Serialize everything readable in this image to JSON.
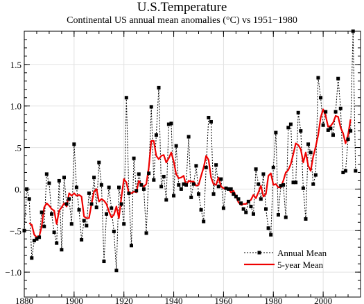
{
  "chart_data": {
    "type": "line",
    "title": "U.S.Temperature",
    "subtitle": "Continental US annual mean anomalies (°C) vs 1951−1980",
    "xlabel": "",
    "ylabel": "",
    "xlim": [
      1880,
      2015
    ],
    "ylim": [
      -1.3,
      1.9
    ],
    "grid": true,
    "legend_position": "bottom-right",
    "x_ticks": [
      1880,
      1900,
      1920,
      1940,
      1960,
      1980,
      2000
    ],
    "x_tick_labels": [
      "1880",
      "1900",
      "1920",
      "1940",
      "1960",
      "1980",
      "2000"
    ],
    "y_ticks": [
      -1.0,
      -0.5,
      0.0,
      0.5,
      1.0,
      1.5
    ],
    "y_tick_labels": [
      "−1.0",
      "−.5",
      "0.",
      ".5",
      "1.0",
      "1.5"
    ],
    "series": [
      {
        "name": "Annual Mean",
        "color": "#000000",
        "style": "dotted-with-square-markers",
        "x": [
          1880,
          1881,
          1882,
          1883,
          1884,
          1885,
          1886,
          1887,
          1888,
          1889,
          1890,
          1891,
          1892,
          1893,
          1894,
          1895,
          1896,
          1897,
          1898,
          1899,
          1900,
          1901,
          1902,
          1903,
          1904,
          1905,
          1906,
          1907,
          1908,
          1909,
          1910,
          1911,
          1912,
          1913,
          1914,
          1915,
          1916,
          1917,
          1918,
          1919,
          1920,
          1921,
          1922,
          1923,
          1924,
          1925,
          1926,
          1927,
          1928,
          1929,
          1930,
          1931,
          1932,
          1933,
          1934,
          1935,
          1936,
          1937,
          1938,
          1939,
          1940,
          1941,
          1942,
          1943,
          1944,
          1945,
          1946,
          1947,
          1948,
          1949,
          1950,
          1951,
          1952,
          1953,
          1954,
          1955,
          1956,
          1957,
          1958,
          1959,
          1960,
          1961,
          1962,
          1963,
          1964,
          1965,
          1966,
          1967,
          1968,
          1969,
          1970,
          1971,
          1972,
          1973,
          1974,
          1975,
          1976,
          1977,
          1978,
          1979,
          1980,
          1981,
          1982,
          1983,
          1984,
          1985,
          1986,
          1987,
          1988,
          1989,
          1990,
          1991,
          1992,
          1993,
          1994,
          1995,
          1996,
          1997,
          1998,
          1999,
          2000,
          2001,
          2002,
          2003,
          2004,
          2005,
          2006,
          2007,
          2008,
          2009,
          2010,
          2011,
          2012,
          2013
        ],
        "values": [
          -0.5,
          0.0,
          -0.12,
          -0.83,
          -0.62,
          -0.6,
          -0.58,
          -0.28,
          -0.45,
          0.18,
          0.07,
          -0.3,
          -0.52,
          -0.65,
          0.1,
          -0.73,
          0.14,
          -0.18,
          -0.12,
          -0.42,
          0.54,
          0.02,
          -0.25,
          -0.61,
          -0.38,
          -0.44,
          -0.05,
          -0.18,
          0.14,
          -0.22,
          0.32,
          0.05,
          -0.87,
          -0.3,
          0.02,
          -0.23,
          -0.51,
          -0.98,
          0.02,
          -0.18,
          -0.42,
          1.1,
          -0.05,
          -0.68,
          0.37,
          -0.02,
          0.18,
          0.05,
          0.0,
          -0.53,
          0.19,
          0.99,
          0.11,
          0.65,
          1.22,
          0.03,
          0.15,
          -0.13,
          0.78,
          0.79,
          -0.08,
          0.52,
          0.05,
          0.0,
          0.06,
          0.05,
          0.63,
          -0.1,
          0.06,
          0.28,
          -0.06,
          -0.25,
          -0.39,
          0.26,
          0.86,
          0.81,
          -0.06,
          0.29,
          0.03,
          0.12,
          -0.23,
          0.01,
          0.0,
          0.0,
          -0.06,
          -0.09,
          -0.12,
          -0.17,
          -0.24,
          -0.28,
          -0.15,
          -0.21,
          -0.3,
          0.24,
          0.06,
          -0.12,
          0.18,
          -0.24,
          -0.47,
          -0.55,
          0.26,
          0.68,
          -0.31,
          0.04,
          0.05,
          -0.34,
          0.74,
          0.78,
          0.08,
          0.08,
          0.92,
          0.7,
          0.01,
          -0.36,
          0.54,
          0.44,
          0.06,
          0.17,
          1.34,
          1.1,
          0.77,
          0.93,
          0.71,
          0.73,
          0.65,
          0.93,
          1.33,
          0.97,
          0.2,
          0.22,
          0.6,
          0.7,
          1.9,
          0.22
        ]
      },
      {
        "name": "5-year Mean",
        "color": "#ee0000",
        "style": "solid",
        "x": [
          1882,
          1883,
          1884,
          1885,
          1886,
          1887,
          1888,
          1889,
          1890,
          1891,
          1892,
          1893,
          1894,
          1895,
          1896,
          1897,
          1898,
          1899,
          1900,
          1901,
          1902,
          1903,
          1904,
          1905,
          1906,
          1907,
          1908,
          1909,
          1910,
          1911,
          1912,
          1913,
          1914,
          1915,
          1916,
          1917,
          1918,
          1919,
          1920,
          1921,
          1922,
          1923,
          1924,
          1925,
          1926,
          1927,
          1928,
          1929,
          1930,
          1931,
          1932,
          1933,
          1934,
          1935,
          1936,
          1937,
          1938,
          1939,
          1940,
          1941,
          1942,
          1943,
          1944,
          1945,
          1946,
          1947,
          1948,
          1949,
          1950,
          1951,
          1952,
          1953,
          1954,
          1955,
          1956,
          1957,
          1958,
          1959,
          1960,
          1961,
          1962,
          1963,
          1964,
          1965,
          1966,
          1967,
          1968,
          1969,
          1970,
          1971,
          1972,
          1973,
          1974,
          1975,
          1976,
          1977,
          1978,
          1979,
          1980,
          1981,
          1982,
          1983,
          1984,
          1985,
          1986,
          1987,
          1988,
          1989,
          1990,
          1991,
          1992,
          1993,
          1994,
          1995,
          1996,
          1997,
          1998,
          1999,
          2000,
          2001,
          2002,
          2003,
          2004,
          2005,
          2006,
          2007,
          2008,
          2009,
          2010,
          2011
        ],
        "values": [
          -0.41,
          -0.43,
          -0.55,
          -0.58,
          -0.57,
          -0.45,
          -0.22,
          -0.17,
          -0.2,
          -0.24,
          -0.26,
          -0.42,
          -0.26,
          -0.22,
          -0.17,
          -0.21,
          -0.05,
          -0.08,
          -0.05,
          -0.08,
          -0.07,
          -0.09,
          -0.33,
          -0.35,
          -0.35,
          -0.18,
          -0.03,
          0.0,
          -0.15,
          -0.12,
          -0.14,
          -0.18,
          -0.27,
          -0.34,
          -0.31,
          -0.21,
          -0.35,
          -0.1,
          0.12,
          0.08,
          -0.05,
          -0.05,
          -0.03,
          -0.04,
          0.1,
          0.05,
          0.03,
          0.06,
          0.26,
          0.58,
          0.58,
          0.4,
          0.36,
          0.4,
          0.41,
          0.32,
          0.37,
          0.44,
          0.33,
          0.18,
          0.13,
          0.14,
          0.16,
          0.04,
          0.1,
          0.09,
          0.09,
          0.04,
          0.05,
          0.16,
          0.26,
          0.4,
          0.35,
          0.14,
          0.06,
          0.05,
          0.14,
          0.03,
          0.01,
          0.0,
          0.0,
          -0.04,
          -0.02,
          -0.09,
          -0.16,
          -0.19,
          -0.18,
          -0.18,
          -0.15,
          -0.13,
          -0.07,
          -0.11,
          -0.04,
          0.04,
          -0.09,
          -0.06,
          0.16,
          0.19,
          0.05,
          0.06,
          0.02,
          0.02,
          0.1,
          0.2,
          0.23,
          0.3,
          0.42,
          0.55,
          0.53,
          0.48,
          0.32,
          0.44,
          0.28,
          0.22,
          0.39,
          0.51,
          0.65,
          0.86,
          0.96,
          0.88,
          0.75,
          0.76,
          0.8,
          0.88,
          0.87,
          0.74,
          0.67,
          0.55,
          0.65,
          0.84
        ]
      }
    ]
  }
}
